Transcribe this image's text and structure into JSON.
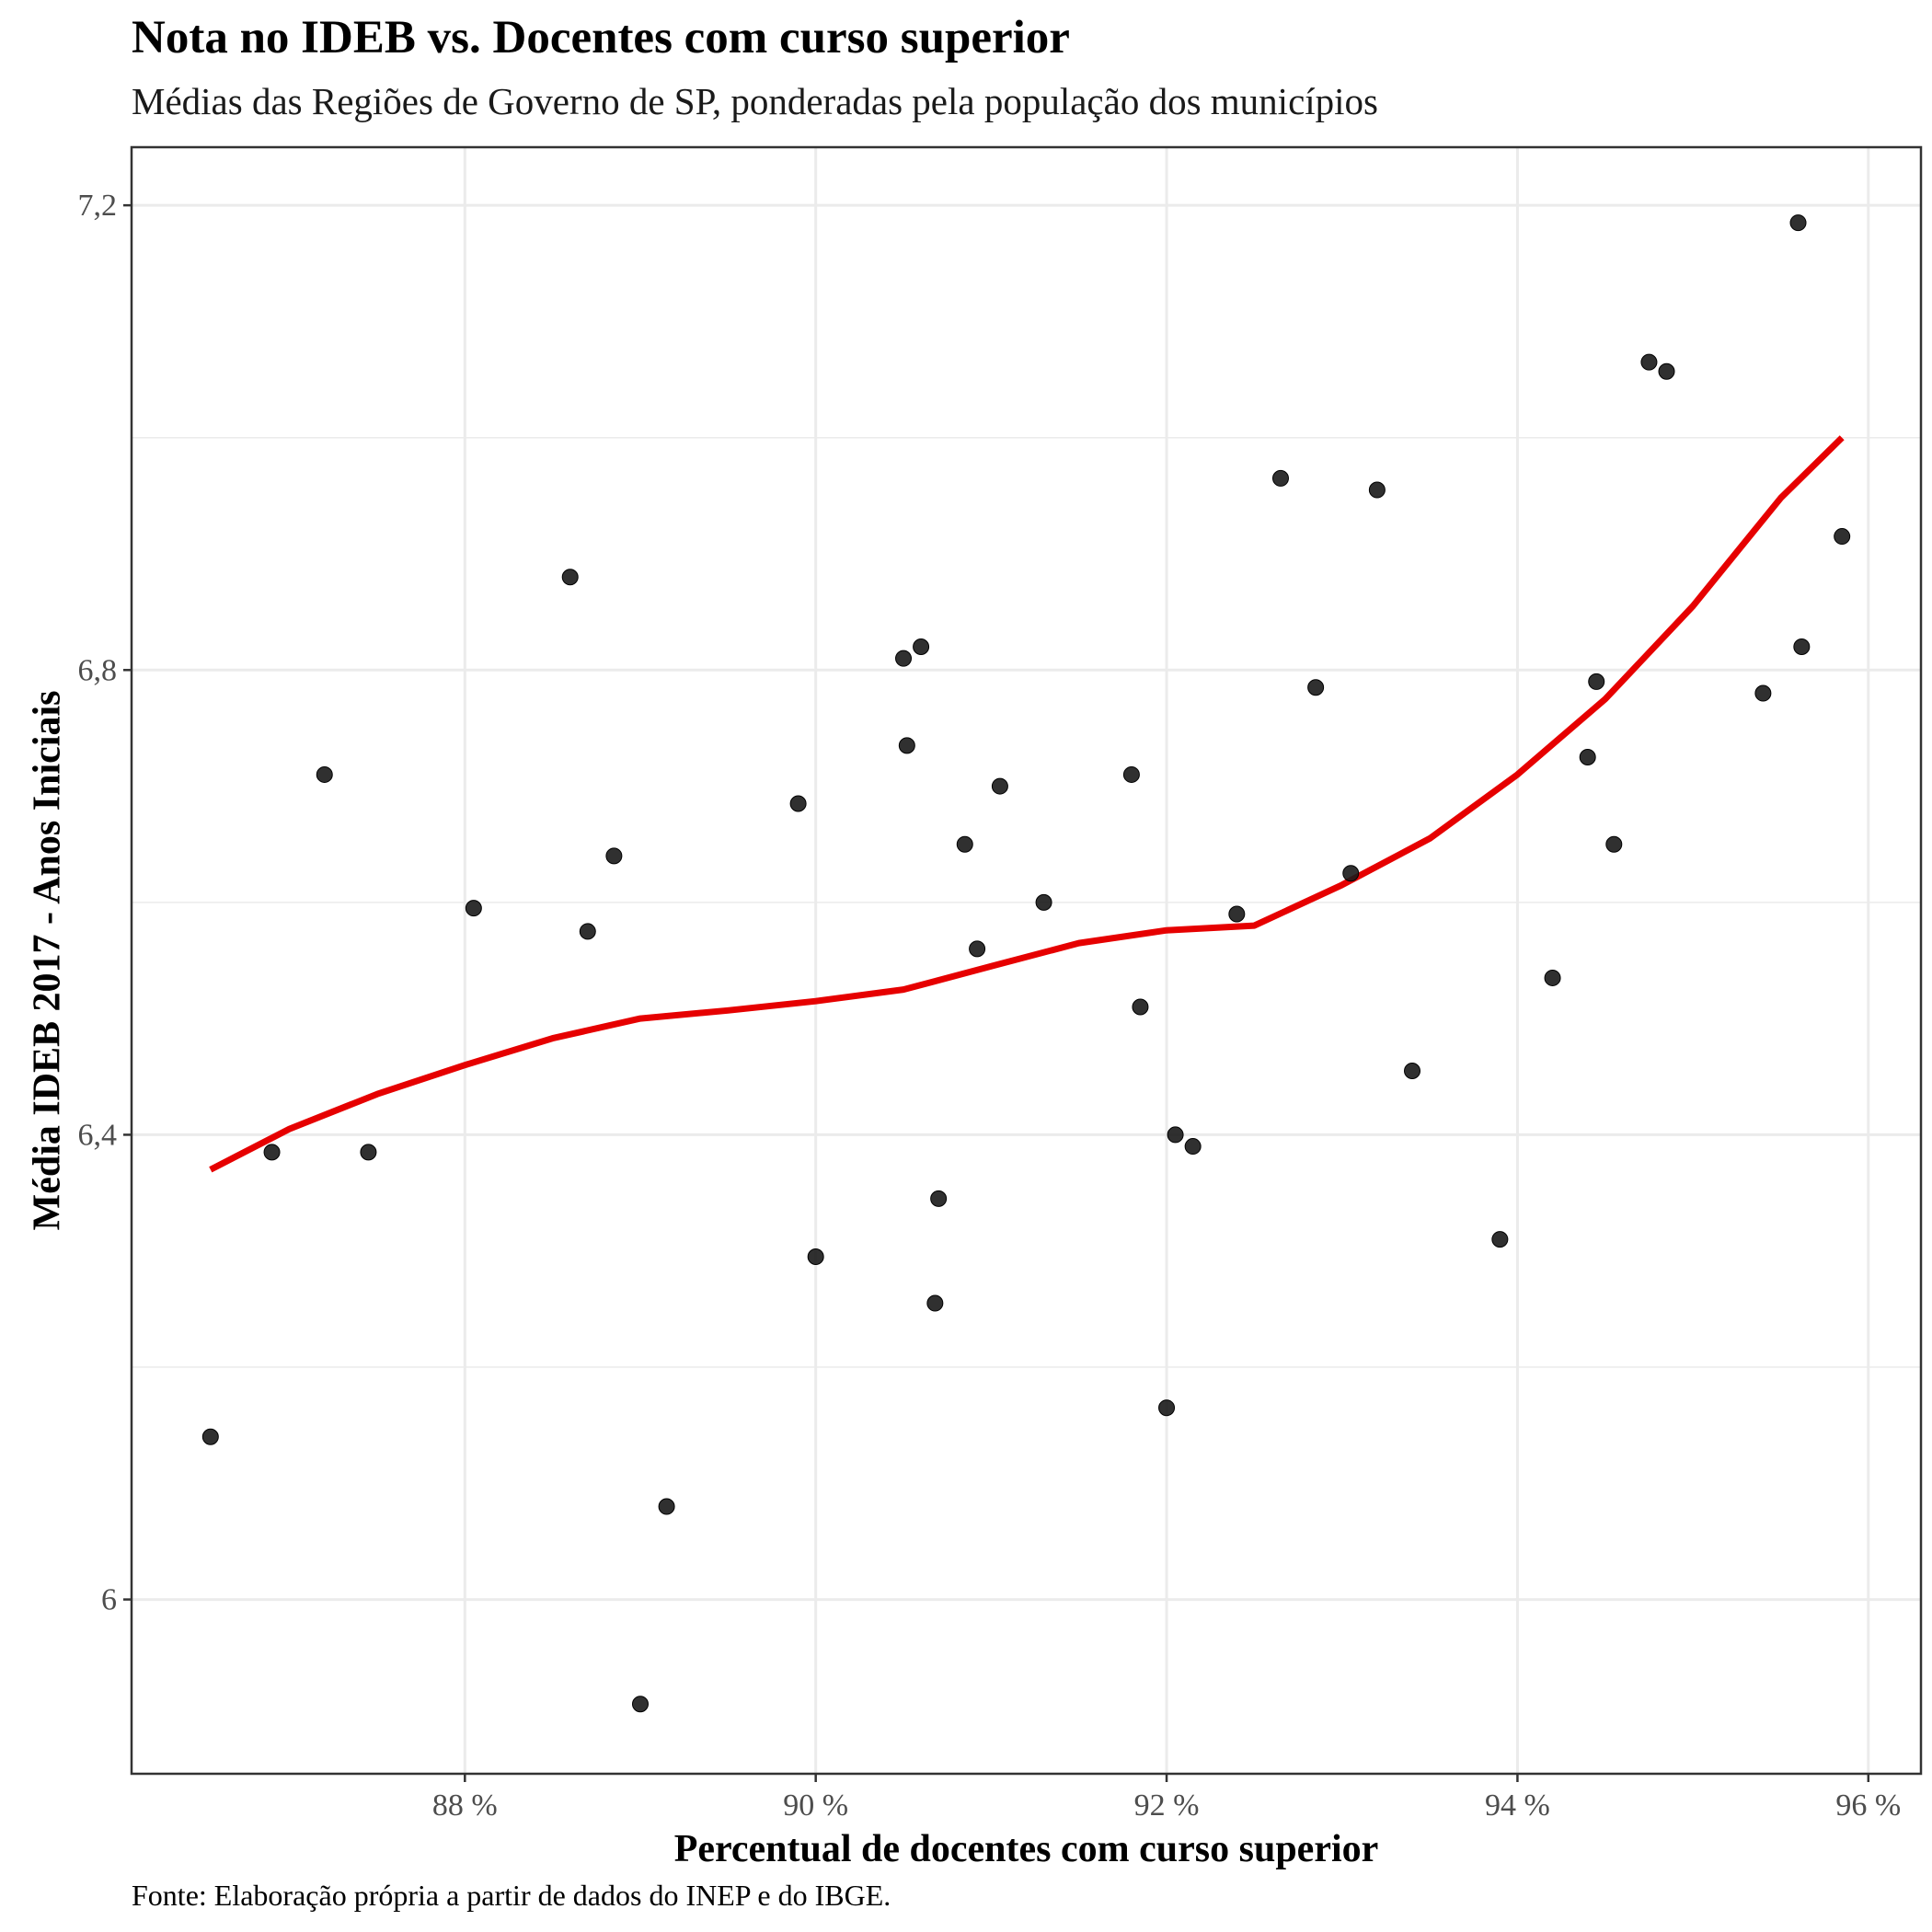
{
  "chart_data": {
    "type": "scatter",
    "title": "Nota no IDEB vs. Docentes com curso superior",
    "subtitle": "Médias das Regiões de Governo de SP, ponderadas pela população dos municípios",
    "caption": "Fonte: Elaboração própria a partir de dados do INEP e do IBGE.",
    "xlabel": "Percentual de docentes com curso superior",
    "ylabel": "Média IDEB 2017 - Anos Iniciais",
    "xlim": [
      86.1,
      96.3
    ],
    "ylim": [
      5.85,
      7.25
    ],
    "grid": true,
    "x_ticks": [
      {
        "value": 88,
        "label": "88 %"
      },
      {
        "value": 90,
        "label": "90 %"
      },
      {
        "value": 92,
        "label": "92 %"
      },
      {
        "value": 94,
        "label": "94 %"
      },
      {
        "value": 96,
        "label": "96 %"
      }
    ],
    "y_ticks": [
      {
        "value": 6.0,
        "label": "6"
      },
      {
        "value": 6.4,
        "label": "6,4"
      },
      {
        "value": 6.8,
        "label": "6,8"
      },
      {
        "value": 7.2,
        "label": "7,2"
      }
    ],
    "y_minor": [
      6.2,
      6.6,
      7.0
    ],
    "x_minor": [],
    "colors": {
      "points": "#1a1a1a",
      "trend": "#e60000",
      "grid": "#ebebeb",
      "panel_border": "#333333"
    },
    "points": [
      [
        86.55,
        6.14
      ],
      [
        86.9,
        6.385
      ],
      [
        87.2,
        6.71
      ],
      [
        87.45,
        6.385
      ],
      [
        88.05,
        6.595
      ],
      [
        88.6,
        6.88
      ],
      [
        88.7,
        6.575
      ],
      [
        88.85,
        6.64
      ],
      [
        89.0,
        5.91
      ],
      [
        89.15,
        6.08
      ],
      [
        89.9,
        6.685
      ],
      [
        90.0,
        6.295
      ],
      [
        90.5,
        6.81
      ],
      [
        90.52,
        6.735
      ],
      [
        90.6,
        6.82
      ],
      [
        90.68,
        6.255
      ],
      [
        90.7,
        6.345
      ],
      [
        90.85,
        6.65
      ],
      [
        90.92,
        6.56
      ],
      [
        91.05,
        6.7
      ],
      [
        91.3,
        6.6
      ],
      [
        91.8,
        6.71
      ],
      [
        91.85,
        6.51
      ],
      [
        92.0,
        6.165
      ],
      [
        92.05,
        6.4
      ],
      [
        92.15,
        6.39
      ],
      [
        92.4,
        6.59
      ],
      [
        92.65,
        6.965
      ],
      [
        92.85,
        6.785
      ],
      [
        93.05,
        6.625
      ],
      [
        93.2,
        6.955
      ],
      [
        93.4,
        6.455
      ],
      [
        93.9,
        6.31
      ],
      [
        94.2,
        6.535
      ],
      [
        94.4,
        6.725
      ],
      [
        94.45,
        6.79
      ],
      [
        94.55,
        6.65
      ],
      [
        94.75,
        7.065
      ],
      [
        94.85,
        7.057
      ],
      [
        95.4,
        6.78
      ],
      [
        95.6,
        7.185
      ],
      [
        95.62,
        6.82
      ],
      [
        95.85,
        6.915
      ]
    ],
    "trend": [
      [
        86.55,
        6.37
      ],
      [
        87.0,
        6.405
      ],
      [
        87.5,
        6.435
      ],
      [
        88.0,
        6.46
      ],
      [
        88.5,
        6.483
      ],
      [
        89.0,
        6.5
      ],
      [
        89.5,
        6.507
      ],
      [
        90.0,
        6.515
      ],
      [
        90.5,
        6.525
      ],
      [
        91.0,
        6.545
      ],
      [
        91.5,
        6.565
      ],
      [
        92.0,
        6.576
      ],
      [
        92.5,
        6.58
      ],
      [
        93.0,
        6.615
      ],
      [
        93.5,
        6.655
      ],
      [
        94.0,
        6.71
      ],
      [
        94.5,
        6.775
      ],
      [
        95.0,
        6.855
      ],
      [
        95.5,
        6.948
      ],
      [
        95.85,
        7.0
      ]
    ]
  }
}
